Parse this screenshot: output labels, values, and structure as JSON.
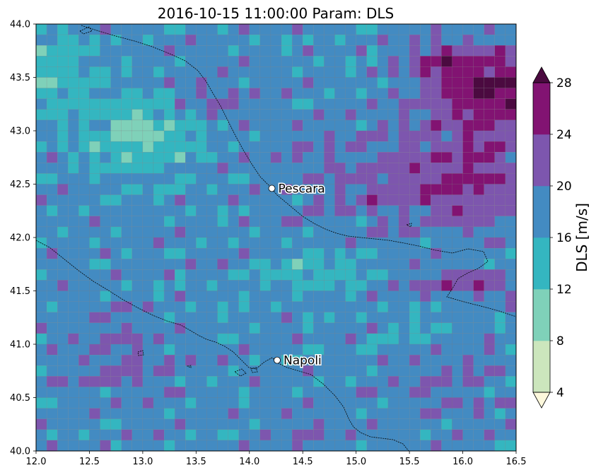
{
  "title": "2016-10-15 11:00:00 Param: DLS",
  "map": {
    "lon_range": [
      12.0,
      16.5
    ],
    "lat_range": [
      40.0,
      44.0
    ],
    "grid_cell_deg": [
      0.1,
      0.1
    ],
    "x_ticks": [
      "12.0",
      "12.5",
      "13.0",
      "13.5",
      "14.0",
      "14.5",
      "15.0",
      "15.5",
      "16.0",
      "16.5"
    ],
    "y_ticks": [
      "40.0",
      "40.5",
      "41.0",
      "41.5",
      "42.0",
      "42.5",
      "43.0",
      "43.5",
      "44.0"
    ],
    "cities": [
      {
        "name": "Pescara",
        "lon": 14.21,
        "lat": 42.46
      },
      {
        "name": "Napoli",
        "lon": 14.26,
        "lat": 40.85
      }
    ]
  },
  "colorbar": {
    "label": "DLS  [m/s]",
    "levels": [
      "4",
      "8",
      "12",
      "16",
      "20",
      "24",
      "28"
    ],
    "bins": [
      {
        "range": "4-8",
        "color": "#cce6bd"
      },
      {
        "range": "8-12",
        "color": "#7fd1b9"
      },
      {
        "range": "12-16",
        "color": "#34b6c0"
      },
      {
        "range": "16-20",
        "color": "#438bc2"
      },
      {
        "range": "20-24",
        "color": "#7d56ae"
      },
      {
        "range": "24-28",
        "color": "#821372"
      }
    ],
    "under_color": "#fdf8dc",
    "over_color": "#4b0a40"
  },
  "colors": {
    "grid_line": "#808080",
    "coastline": "#000000"
  }
}
